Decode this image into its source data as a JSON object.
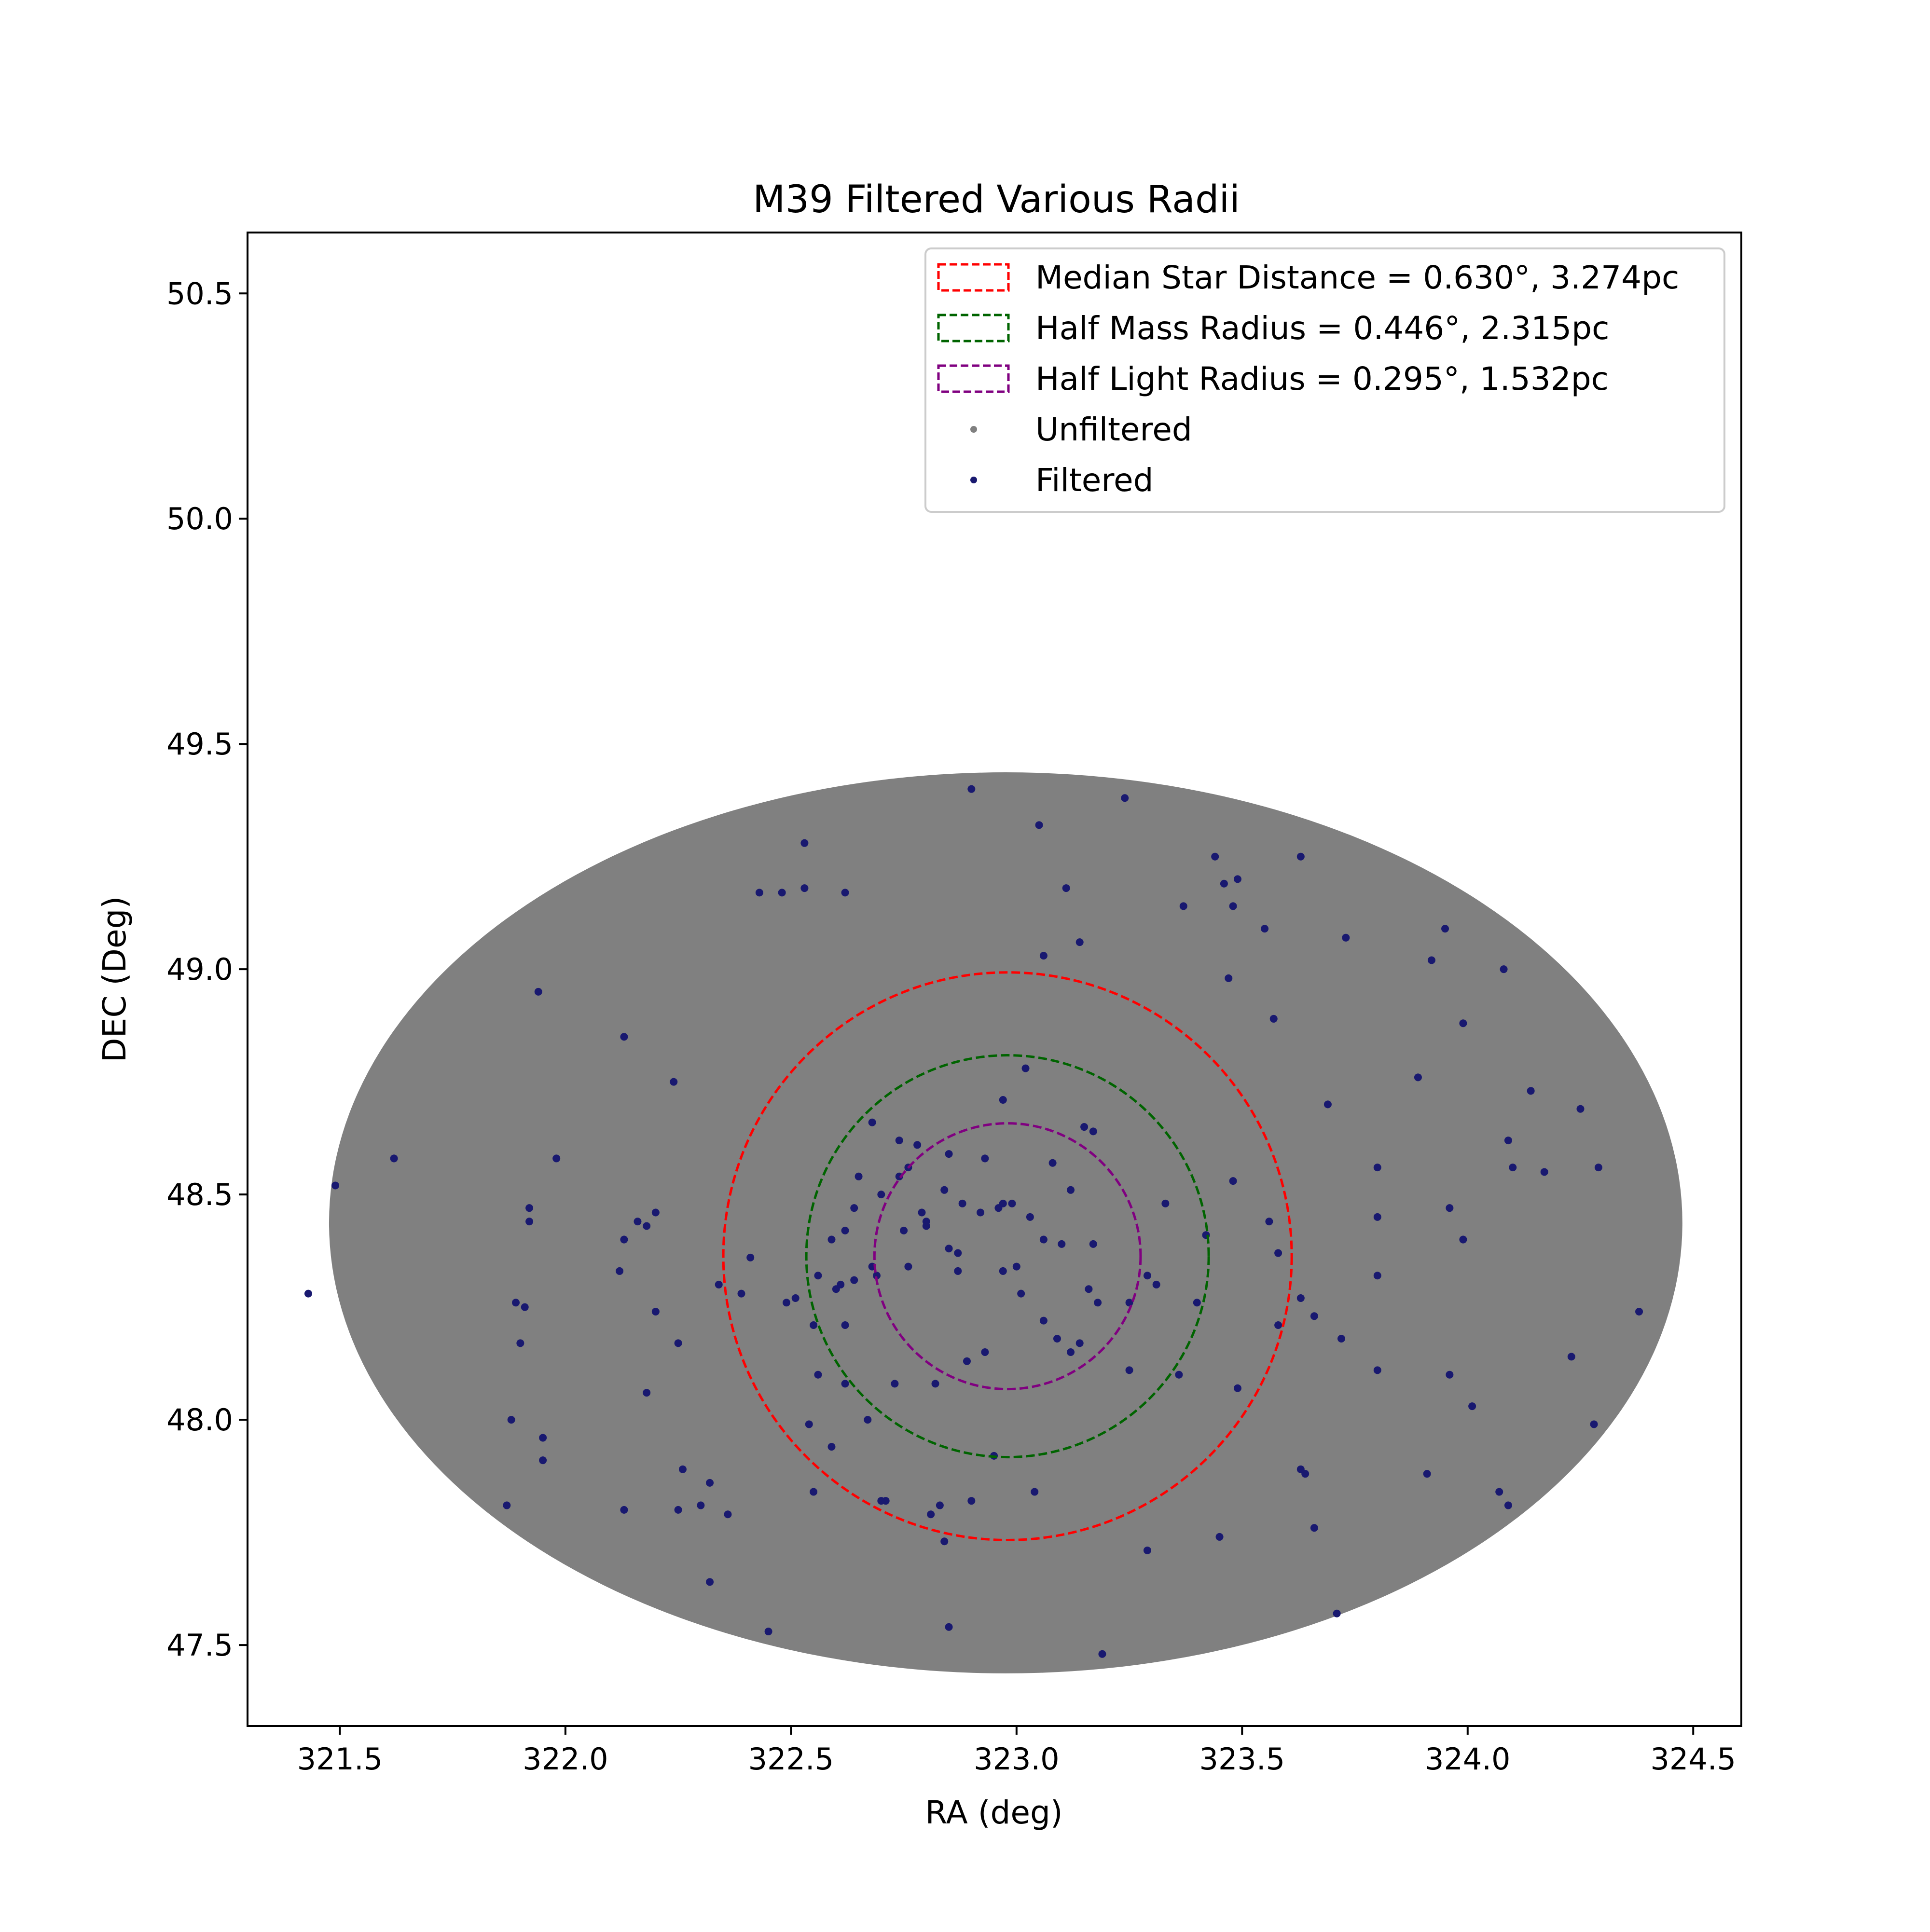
{
  "chart_data": {
    "type": "scatter",
    "title": "M39 Filtered Various Radii",
    "xlabel": "RA (deg)",
    "ylabel": "DEC (Deg)",
    "xlim": [
      321.2953,
      324.6067
    ],
    "ylim": [
      47.3202,
      50.6352
    ],
    "xticks": [
      "321.5",
      "322.0",
      "322.5",
      "323.0",
      "323.5",
      "324.0",
      "324.5"
    ],
    "yticks": [
      "47.5",
      "48.0",
      "48.5",
      "49.0",
      "49.5",
      "50.0",
      "50.5"
    ],
    "grid": false,
    "legend_placement": "upper right",
    "colors": {
      "unfiltered": "#808080",
      "filtered": "#191970",
      "median_circle": "#ff0000",
      "half_mass_circle": "#006400",
      "half_light_circle": "#800080"
    },
    "unfiltered_region": {
      "center_ra": 322.976,
      "center_dec": 48.437,
      "ra_half_width": 1.5,
      "dec_half_height": 1.0
    },
    "radii": [
      {
        "name": "Median Star Distance = 0.630°, 3.274pc",
        "radius_deg": 0.63,
        "center_ra": 322.98,
        "center_dec": 48.363,
        "color": "#ff0000"
      },
      {
        "name": "Half Mass Radius = 0.446°, 2.315pc",
        "radius_deg": 0.446,
        "center_ra": 322.98,
        "center_dec": 48.363,
        "color": "#006400"
      },
      {
        "name": "Half Light Radius = 0.295°, 1.532pc",
        "radius_deg": 0.295,
        "center_ra": 322.98,
        "center_dec": 48.363,
        "color": "#800080"
      }
    ],
    "series": [
      {
        "name": "Unfiltered",
        "color": "#808080"
      },
      {
        "name": "Filtered",
        "color": "#191970",
        "points": [
          [
            322.9,
            49.4
          ],
          [
            323.24,
            49.38
          ],
          [
            323.05,
            49.32
          ],
          [
            322.53,
            49.28
          ],
          [
            322.53,
            49.18
          ],
          [
            322.43,
            49.17
          ],
          [
            322.48,
            49.17
          ],
          [
            322.62,
            49.17
          ],
          [
            323.11,
            49.18
          ],
          [
            323.44,
            49.25
          ],
          [
            323.63,
            49.25
          ],
          [
            323.46,
            49.19
          ],
          [
            323.49,
            49.2
          ],
          [
            323.37,
            49.14
          ],
          [
            323.48,
            49.14
          ],
          [
            323.55,
            49.09
          ],
          [
            323.73,
            49.07
          ],
          [
            323.95,
            49.09
          ],
          [
            323.14,
            49.06
          ],
          [
            323.06,
            49.03
          ],
          [
            323.92,
            49.02
          ],
          [
            324.08,
            49.0
          ],
          [
            323.47,
            48.98
          ],
          [
            323.57,
            48.89
          ],
          [
            323.99,
            48.88
          ],
          [
            321.94,
            48.95
          ],
          [
            322.13,
            48.85
          ],
          [
            322.24,
            48.75
          ],
          [
            321.62,
            48.58
          ],
          [
            321.98,
            48.58
          ],
          [
            321.49,
            48.52
          ],
          [
            322.78,
            48.61
          ],
          [
            323.89,
            48.76
          ],
          [
            323.8,
            48.56
          ],
          [
            323.69,
            48.7
          ],
          [
            324.14,
            48.73
          ],
          [
            324.25,
            48.69
          ],
          [
            324.09,
            48.62
          ],
          [
            324.1,
            48.56
          ],
          [
            324.17,
            48.55
          ],
          [
            324.29,
            48.56
          ],
          [
            322.96,
            48.47
          ],
          [
            322.92,
            48.46
          ],
          [
            322.8,
            48.43
          ],
          [
            322.75,
            48.42
          ],
          [
            322.87,
            48.37
          ],
          [
            323.03,
            48.45
          ],
          [
            323.06,
            48.4
          ],
          [
            323.1,
            48.39
          ],
          [
            322.64,
            48.47
          ],
          [
            322.62,
            48.42
          ],
          [
            322.59,
            48.4
          ],
          [
            322.7,
            48.5
          ],
          [
            322.84,
            48.51
          ],
          [
            322.93,
            48.58
          ],
          [
            323.08,
            48.57
          ],
          [
            323.15,
            48.65
          ],
          [
            323.17,
            48.64
          ],
          [
            322.74,
            48.62
          ],
          [
            322.68,
            48.66
          ],
          [
            322.97,
            48.71
          ],
          [
            323.02,
            48.78
          ],
          [
            322.74,
            48.54
          ],
          [
            322.99,
            48.48
          ],
          [
            323.12,
            48.51
          ],
          [
            323.33,
            48.48
          ],
          [
            323.48,
            48.53
          ],
          [
            323.42,
            48.41
          ],
          [
            323.25,
            48.26
          ],
          [
            323.31,
            48.3
          ],
          [
            323.16,
            48.29
          ],
          [
            323.18,
            48.26
          ],
          [
            323.09,
            48.18
          ],
          [
            323.12,
            48.15
          ],
          [
            323.06,
            48.22
          ],
          [
            322.87,
            48.33
          ],
          [
            322.97,
            48.33
          ],
          [
            323.0,
            48.34
          ],
          [
            323.01,
            48.28
          ],
          [
            322.93,
            48.15
          ],
          [
            322.89,
            48.13
          ],
          [
            322.82,
            48.08
          ],
          [
            322.73,
            48.08
          ],
          [
            322.62,
            48.08
          ],
          [
            322.56,
            48.1
          ],
          [
            322.61,
            48.3
          ],
          [
            322.64,
            48.31
          ],
          [
            322.69,
            48.32
          ],
          [
            322.68,
            48.34
          ],
          [
            322.56,
            48.32
          ],
          [
            322.51,
            48.27
          ],
          [
            322.49,
            48.26
          ],
          [
            322.6,
            48.29
          ],
          [
            322.62,
            48.21
          ],
          [
            322.55,
            48.21
          ],
          [
            322.41,
            48.36
          ],
          [
            322.39,
            48.28
          ],
          [
            322.34,
            48.3
          ],
          [
            322.2,
            48.24
          ],
          [
            322.25,
            48.17
          ],
          [
            321.91,
            48.25
          ],
          [
            321.89,
            48.26
          ],
          [
            321.9,
            48.17
          ],
          [
            321.92,
            48.47
          ],
          [
            321.92,
            48.44
          ],
          [
            322.2,
            48.46
          ],
          [
            322.18,
            48.43
          ],
          [
            322.16,
            48.44
          ],
          [
            322.13,
            48.4
          ],
          [
            322.12,
            48.33
          ],
          [
            321.43,
            48.28
          ],
          [
            322.18,
            48.06
          ],
          [
            321.95,
            47.96
          ],
          [
            321.95,
            47.91
          ],
          [
            321.88,
            48.0
          ],
          [
            322.13,
            47.8
          ],
          [
            321.87,
            47.81
          ],
          [
            322.26,
            47.89
          ],
          [
            322.32,
            47.86
          ],
          [
            322.36,
            47.79
          ],
          [
            322.25,
            47.8
          ],
          [
            322.3,
            47.81
          ],
          [
            322.32,
            47.64
          ],
          [
            322.45,
            47.53
          ],
          [
            322.55,
            47.84
          ],
          [
            322.71,
            47.82
          ],
          [
            322.59,
            47.94
          ],
          [
            322.67,
            48.0
          ],
          [
            322.54,
            47.99
          ],
          [
            322.7,
            47.82
          ],
          [
            322.81,
            47.79
          ],
          [
            322.83,
            47.81
          ],
          [
            322.84,
            47.73
          ],
          [
            322.85,
            47.54
          ],
          [
            322.9,
            47.82
          ],
          [
            322.95,
            47.92
          ],
          [
            323.04,
            47.84
          ],
          [
            323.19,
            47.48
          ],
          [
            323.29,
            47.71
          ],
          [
            323.45,
            47.74
          ],
          [
            323.49,
            48.07
          ],
          [
            323.58,
            48.21
          ],
          [
            323.63,
            47.89
          ],
          [
            323.64,
            47.88
          ],
          [
            323.66,
            47.76
          ],
          [
            323.71,
            47.57
          ],
          [
            323.72,
            48.18
          ],
          [
            323.8,
            48.11
          ],
          [
            323.96,
            48.1
          ],
          [
            324.01,
            48.03
          ],
          [
            323.91,
            47.88
          ],
          [
            324.07,
            47.84
          ],
          [
            324.09,
            47.81
          ],
          [
            324.23,
            48.14
          ],
          [
            324.28,
            47.99
          ],
          [
            324.38,
            48.24
          ],
          [
            323.96,
            48.47
          ],
          [
            323.99,
            48.4
          ],
          [
            323.8,
            48.32
          ],
          [
            323.8,
            48.45
          ],
          [
            323.56,
            48.44
          ],
          [
            323.58,
            48.37
          ],
          [
            323.63,
            48.27
          ],
          [
            323.66,
            48.23
          ],
          [
            323.4,
            48.26
          ],
          [
            323.36,
            48.1
          ],
          [
            323.25,
            48.11
          ],
          [
            323.14,
            48.17
          ],
          [
            323.29,
            48.32
          ],
          [
            323.17,
            48.39
          ],
          [
            322.88,
            48.48
          ],
          [
            322.8,
            48.44
          ],
          [
            322.85,
            48.38
          ],
          [
            322.76,
            48.34
          ],
          [
            322.65,
            48.54
          ],
          [
            322.76,
            48.56
          ],
          [
            322.85,
            48.59
          ],
          [
            322.79,
            48.46
          ],
          [
            322.97,
            48.48
          ]
        ]
      }
    ],
    "legend": [
      {
        "label": "Median Star Distance = 0.630°, 3.274pc",
        "kind": "dashed-box",
        "color": "#ff0000"
      },
      {
        "label": "Half Mass Radius = 0.446°, 2.315pc",
        "kind": "dashed-box",
        "color": "#006400"
      },
      {
        "label": "Half Light Radius = 0.295°, 1.532pc",
        "kind": "dashed-box",
        "color": "#800080"
      },
      {
        "label": "Unfiltered",
        "kind": "dot",
        "color": "#808080"
      },
      {
        "label": "Filtered",
        "kind": "dot",
        "color": "#191970"
      }
    ]
  }
}
